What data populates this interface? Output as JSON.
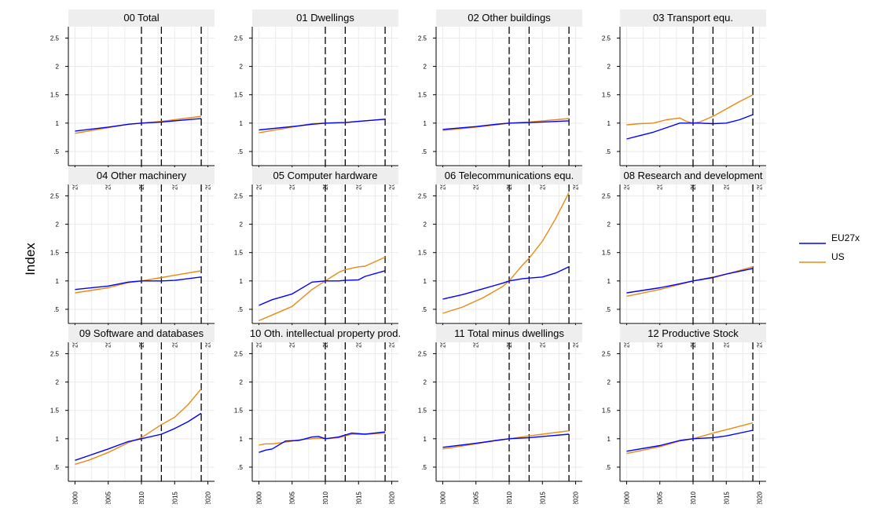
{
  "chart_data": {
    "type": "line",
    "ylabel": "Index",
    "ylim": [
      0.25,
      2.7
    ],
    "xlim": [
      1999,
      2021
    ],
    "y_ticks": [
      ".5",
      "1",
      "1.5",
      "2",
      "2.5"
    ],
    "x_ticks": [
      "2000",
      "2005",
      "2010",
      "2015",
      "2020"
    ],
    "vlines": [
      2010,
      2013,
      2019
    ],
    "grid": true,
    "legend_placement": "right",
    "series_names": [
      "EU27x",
      "US"
    ],
    "colors": {
      "EU27x": "#0000ff",
      "US": "#e88a12"
    },
    "panels": [
      {
        "title": "00 Total",
        "x": [
          2000,
          2005,
          2008,
          2010,
          2013,
          2015,
          2019
        ],
        "series": [
          {
            "name": "EU27x",
            "values": [
              0.86,
              0.93,
              0.98,
              1.0,
              1.02,
              1.04,
              1.08
            ]
          },
          {
            "name": "US",
            "values": [
              0.82,
              0.92,
              0.98,
              1.0,
              1.03,
              1.06,
              1.12
            ]
          }
        ]
      },
      {
        "title": "01 Dwellings",
        "x": [
          2000,
          2005,
          2008,
          2010,
          2013,
          2015,
          2019
        ],
        "series": [
          {
            "name": "EU27x",
            "values": [
              0.88,
              0.94,
              0.98,
              1.0,
              1.01,
              1.03,
              1.07
            ]
          },
          {
            "name": "US",
            "values": [
              0.83,
              0.93,
              0.99,
              1.0,
              1.01,
              1.03,
              1.07
            ]
          }
        ]
      },
      {
        "title": "02 Other buildings",
        "x": [
          2000,
          2005,
          2008,
          2010,
          2013,
          2015,
          2019
        ],
        "series": [
          {
            "name": "EU27x",
            "values": [
              0.89,
              0.94,
              0.98,
              1.0,
              1.01,
              1.02,
              1.04
            ]
          },
          {
            "name": "US",
            "values": [
              0.87,
              0.93,
              0.97,
              1.0,
              1.02,
              1.04,
              1.08
            ]
          }
        ]
      },
      {
        "title": "03 Transport equ.",
        "x": [
          2000,
          2002,
          2004,
          2006,
          2008,
          2009,
          2010,
          2011,
          2013,
          2015,
          2017,
          2019
        ],
        "series": [
          {
            "name": "EU27x",
            "values": [
              0.72,
              0.78,
              0.84,
              0.92,
              1.0,
              1.0,
              1.0,
              1.0,
              0.99,
              1.0,
              1.06,
              1.15
            ]
          },
          {
            "name": "US",
            "values": [
              0.97,
              0.99,
              1.0,
              1.06,
              1.09,
              1.03,
              1.0,
              1.02,
              1.12,
              1.25,
              1.38,
              1.5
            ]
          }
        ]
      },
      {
        "title": "04 Other machinery",
        "x": [
          2000,
          2005,
          2008,
          2010,
          2013,
          2015,
          2019
        ],
        "series": [
          {
            "name": "EU27x",
            "values": [
              0.85,
              0.91,
              0.98,
              1.0,
              1.0,
              1.01,
              1.07
            ]
          },
          {
            "name": "US",
            "values": [
              0.79,
              0.88,
              0.97,
              1.0,
              1.06,
              1.1,
              1.18
            ]
          }
        ]
      },
      {
        "title": "05 Computer hardware",
        "x": [
          2000,
          2002,
          2005,
          2008,
          2010,
          2012,
          2013,
          2015,
          2016,
          2019
        ],
        "series": [
          {
            "name": "EU27x",
            "values": [
              0.57,
              0.67,
              0.77,
              0.98,
              1.0,
              1.0,
              1.01,
              1.02,
              1.08,
              1.18
            ]
          },
          {
            "name": "US",
            "values": [
              0.3,
              0.4,
              0.55,
              0.85,
              1.0,
              1.15,
              1.2,
              1.25,
              1.26,
              1.42
            ]
          }
        ]
      },
      {
        "title": "06 Telecommunications equ.",
        "x": [
          2000,
          2003,
          2006,
          2009,
          2010,
          2012,
          2013,
          2015,
          2017,
          2019
        ],
        "series": [
          {
            "name": "EU27x",
            "values": [
              0.68,
              0.76,
              0.86,
              0.96,
              1.0,
              1.04,
              1.05,
              1.07,
              1.14,
              1.25
            ]
          },
          {
            "name": "US",
            "values": [
              0.43,
              0.54,
              0.7,
              0.9,
              1.0,
              1.28,
              1.4,
              1.7,
              2.1,
              2.56
            ]
          }
        ]
      },
      {
        "title": "08 Research and development",
        "x": [
          2000,
          2005,
          2008,
          2010,
          2013,
          2015,
          2019
        ],
        "series": [
          {
            "name": "EU27x",
            "values": [
              0.79,
              0.88,
              0.95,
              1.0,
              1.06,
              1.12,
              1.22
            ]
          },
          {
            "name": "US",
            "values": [
              0.73,
              0.85,
              0.94,
              1.0,
              1.07,
              1.12,
              1.25
            ]
          }
        ]
      },
      {
        "title": "09 Software and databases",
        "x": [
          2000,
          2002,
          2005,
          2008,
          2010,
          2013,
          2015,
          2017,
          2019
        ],
        "series": [
          {
            "name": "EU27x",
            "values": [
              0.62,
              0.7,
              0.82,
              0.95,
              1.0,
              1.08,
              1.18,
              1.3,
              1.45
            ]
          },
          {
            "name": "US",
            "values": [
              0.55,
              0.62,
              0.76,
              0.93,
              1.02,
              1.25,
              1.38,
              1.6,
              1.88
            ]
          }
        ]
      },
      {
        "title": "10 Oth. intellectual property prod.",
        "x": [
          2000,
          2001,
          2002,
          2004,
          2006,
          2008,
          2009,
          2010,
          2012,
          2014,
          2016,
          2019
        ],
        "series": [
          {
            "name": "EU27x",
            "values": [
              0.76,
              0.8,
              0.82,
              0.96,
              0.97,
              1.03,
              1.04,
              1.0,
              1.03,
              1.1,
              1.08,
              1.12
            ]
          },
          {
            "name": "US",
            "values": [
              0.89,
              0.91,
              0.91,
              0.94,
              0.98,
              1.0,
              1.01,
              1.0,
              1.02,
              1.08,
              1.08,
              1.1
            ]
          }
        ]
      },
      {
        "title": "11 Total minus dwellings",
        "x": [
          2000,
          2005,
          2008,
          2010,
          2013,
          2015,
          2019
        ],
        "series": [
          {
            "name": "EU27x",
            "values": [
              0.85,
              0.92,
              0.97,
              1.0,
              1.02,
              1.04,
              1.08
            ]
          },
          {
            "name": "US",
            "values": [
              0.82,
              0.91,
              0.97,
              1.0,
              1.05,
              1.08,
              1.14
            ]
          }
        ]
      },
      {
        "title": "12 Productive Stock",
        "x": [
          2000,
          2005,
          2008,
          2010,
          2013,
          2015,
          2019
        ],
        "series": [
          {
            "name": "EU27x",
            "values": [
              0.78,
              0.88,
              0.97,
              1.0,
              1.02,
              1.05,
              1.15
            ]
          },
          {
            "name": "US",
            "values": [
              0.74,
              0.86,
              0.96,
              1.0,
              1.1,
              1.16,
              1.28
            ]
          }
        ]
      }
    ]
  }
}
